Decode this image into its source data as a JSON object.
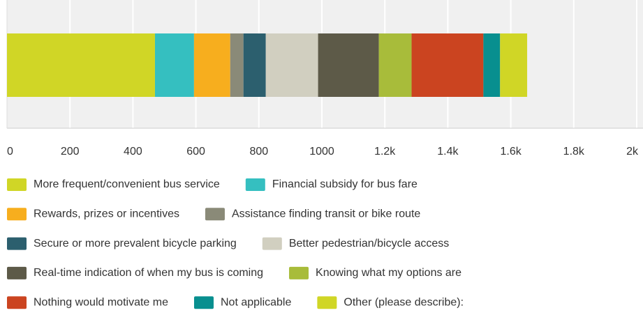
{
  "chart_data": {
    "type": "stacked-bar-horizontal",
    "categories": [
      null
    ],
    "series": [
      {
        "name": "More frequent/convenient bus service",
        "color": "#d0d626",
        "values": [
          470
        ]
      },
      {
        "name": "Financial subsidy for bus fare",
        "color": "#35bfc0",
        "values": [
          124
        ]
      },
      {
        "name": "Rewards, prizes or incentives",
        "color": "#f7ae1e",
        "values": [
          115
        ]
      },
      {
        "name": "Assistance finding transit or bike route",
        "color": "#8a8a78",
        "values": [
          42
        ]
      },
      {
        "name": "Secure or more prevalent bicycle parking",
        "color": "#2c5f6e",
        "values": [
          71
        ]
      },
      {
        "name": "Better pedestrian/bicycle access",
        "color": "#d1cfc0",
        "values": [
          166
        ]
      },
      {
        "name": "Real-time indication of when my bus is coming",
        "color": "#5d5a48",
        "values": [
          193
        ]
      },
      {
        "name": "Knowing what my options are",
        "color": "#a8bc3a",
        "values": [
          104
        ]
      },
      {
        "name": "Nothing would motivate me",
        "color": "#cb4420",
        "values": [
          228
        ]
      },
      {
        "name": "Not applicable",
        "color": "#088f8f",
        "values": [
          53
        ]
      },
      {
        "name": "Other (please describe):",
        "color": "#d0d626",
        "values": [
          86
        ]
      }
    ],
    "xlim": [
      0,
      2000
    ],
    "xticks": [
      0,
      200,
      400,
      600,
      800,
      1000,
      {
        "value": 1200,
        "label": "1.2k"
      },
      {
        "value": 1400,
        "label": "1.4k"
      },
      {
        "value": 1600,
        "label": "1.6k"
      },
      {
        "value": 1800,
        "label": "1.8k"
      },
      {
        "value": 2000,
        "label": "2k"
      }
    ],
    "grid": true
  }
}
